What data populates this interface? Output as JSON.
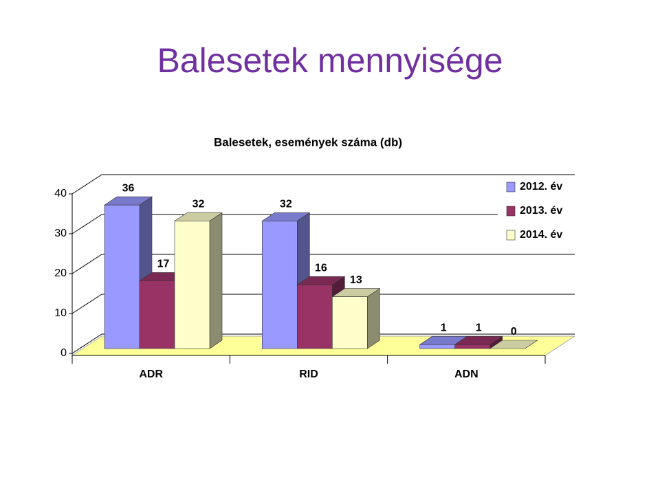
{
  "title": "Balesetek mennyisége",
  "chart_data": {
    "type": "bar3d",
    "title": "Balesetek, események száma (db)",
    "categories": [
      "ADR",
      "RID",
      "ADN"
    ],
    "series": [
      {
        "name": "2012. év",
        "color": "#9999ff",
        "values": [
          36,
          32,
          1
        ]
      },
      {
        "name": "2013. év",
        "color": "#993366",
        "values": [
          17,
          16,
          1
        ]
      },
      {
        "name": "2014. év",
        "color": "#ffffcc",
        "values": [
          32,
          13,
          0
        ]
      }
    ],
    "ylim": [
      0,
      40
    ],
    "yticks": [
      0,
      10,
      20,
      30,
      40
    ],
    "grid": true,
    "legend": "right",
    "data_labels": true
  }
}
